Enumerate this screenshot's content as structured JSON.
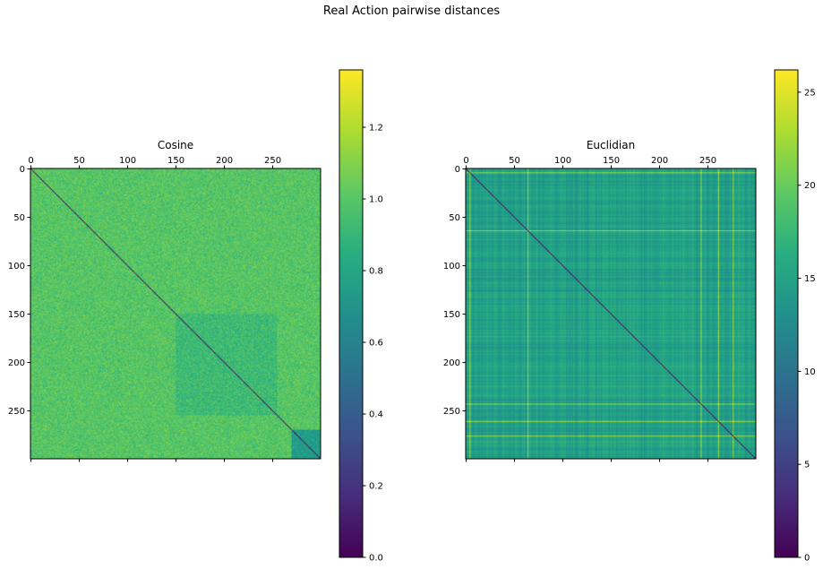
{
  "figure": {
    "suptitle": "Real Action pairwise distances"
  },
  "chart_data": [
    {
      "type": "heatmap",
      "title": "Cosine",
      "colormap": "viridis",
      "matrix_size": 300,
      "diagonal_value": 0,
      "typical_value": 1.0,
      "x_ticks": [
        0,
        50,
        100,
        150,
        200,
        250
      ],
      "y_ticks": [
        0,
        50,
        100,
        150,
        200,
        250
      ],
      "x_tick_position": "top",
      "colorbar": {
        "min": 0.0,
        "max": 1.36,
        "ticks": [
          0.0,
          0.2,
          0.4,
          0.6,
          0.8,
          1.0,
          1.2
        ],
        "tick_labels": [
          "0.0",
          "0.2",
          "0.4",
          "0.6",
          "0.8",
          "1.0",
          "1.2"
        ]
      }
    },
    {
      "type": "heatmap",
      "title": "Euclidian",
      "colormap": "viridis",
      "matrix_size": 300,
      "diagonal_value": 0,
      "typical_value": 15,
      "x_ticks": [
        0,
        50,
        100,
        150,
        200,
        250
      ],
      "y_ticks": [
        0,
        50,
        100,
        150,
        200,
        250
      ],
      "x_tick_position": "top",
      "colorbar": {
        "min": 0,
        "max": 26.2,
        "ticks": [
          0,
          5,
          10,
          15,
          20,
          25
        ],
        "tick_labels": [
          "0",
          "5",
          "10",
          "15",
          "20",
          "25"
        ]
      }
    }
  ],
  "colors": {
    "viridis_low": "#440154",
    "viridis_mid": "#21918c",
    "viridis_high": "#fde725"
  }
}
